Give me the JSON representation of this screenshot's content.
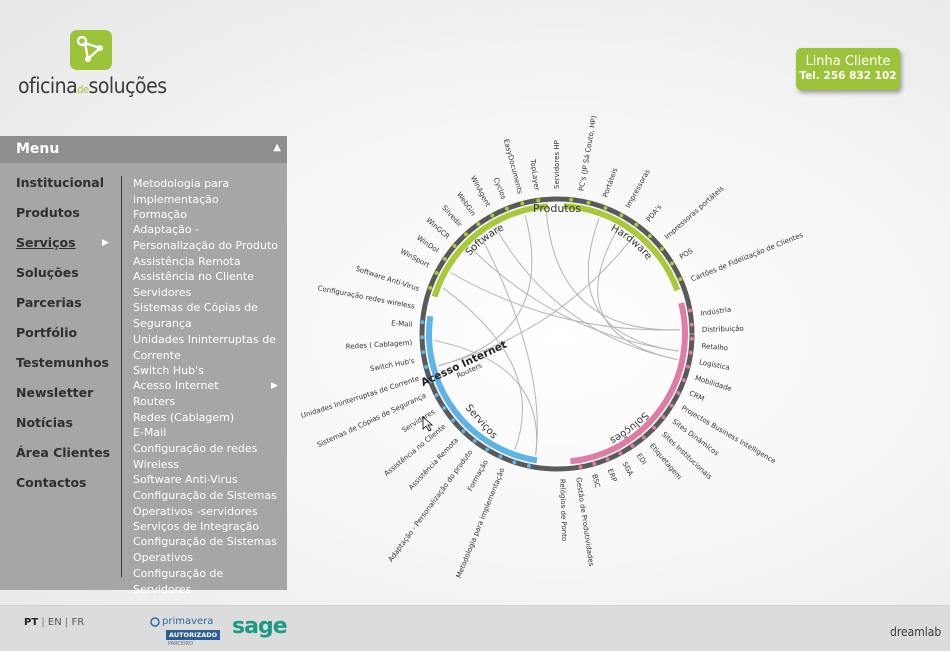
{
  "logo": {
    "text_a": "oficina",
    "text_b": "de",
    "text_c": "soluções"
  },
  "phone": {
    "title": "Linha Cliente",
    "number": "Tel. 256 832 102"
  },
  "menu": {
    "title": "Menu",
    "items": [
      "Institucional",
      "Produtos",
      "Serviços",
      "Soluções",
      "Parcerias",
      "Portfólio",
      "Testemunhos",
      "Newsletter",
      "Notícias",
      "Área Clientes",
      "Contactos"
    ],
    "active": "Serviços",
    "subitems": [
      "Metodologia para implementação",
      "Formação",
      "Adaptação - Personalização do Produto",
      "Assistência Remota",
      "Assistência no Cliente",
      "Servidores",
      "Sistemas de Cópias de Segurança",
      "Unidades Ininterruptas de Corrente",
      "Switch Hub's",
      "Acesso Internet",
      "Routers",
      "Redes (Cablagem)",
      "E-Mail",
      "Configuração de redes Wireless",
      "Software Anti-Virus",
      "Configuração de Sistemas Operativos -servidores",
      "Serviços de Integração",
      "Configuração de Sistemas Operativos",
      "Configuração de Servidores"
    ]
  },
  "diagram": {
    "center_label": "Produtos",
    "arc_labels": {
      "software": "Software",
      "hardware": "Hardware",
      "servicos": "Serviços",
      "solucoes": "Soluções"
    },
    "colors": {
      "software": "#a9c93a",
      "hardware": "#a9c93a",
      "servicos": "#5db4e6",
      "solucoes": "#e07aa6",
      "ring": "#5a5a5a"
    },
    "software_items": [
      "WinSport",
      "WinDol",
      "WinGCR",
      "Silvedir",
      "WebGin",
      "WinAgent",
      "Cyclos",
      "EasyDocuments",
      "TopLayer"
    ],
    "hardware_items": [
      "Servidores HP",
      "PC's (JP Sá Couto, HP)",
      "Portáteis",
      "Impressoras",
      "PDA's",
      "Impressoras portáteis",
      "POS",
      "Cartões de Fidelização de Clientes"
    ],
    "servicos_items_left": [
      "Metodologia para implementação",
      "Formação",
      "Adaptação - Personalização do produto",
      "Assistência Remota",
      "Assistência no Cliente",
      "Servidores",
      "Sistemas de Cópias de Segurança",
      "Unidades Ininterruptas de Corrente",
      "Switch Hub's",
      "Redes ( Cablagem)",
      "E-Mail",
      "Configuração redes wireless",
      "Software Anti-Virus"
    ],
    "servicos_highlight": "Acesso Internet",
    "servicos_highlight2": "Routers",
    "solucoes_items_right": [
      "Indústria",
      "Distribuição",
      "Retalho",
      "Logística",
      "Mobilidade",
      "CRM",
      "Projectos Business Intelligence",
      "Sites Dinâmicos",
      "Sites Institucionais",
      "Etiquetagem",
      "EDI",
      "SGA",
      "ERP",
      "BSC",
      "Gestão de Produtividades",
      "Relógios de Ponto"
    ]
  },
  "footer": {
    "languages": [
      "PT",
      "EN",
      "FR"
    ],
    "active_language": "PT",
    "primavera": "primavera",
    "primavera_badge": "AUTORIZADO",
    "primavera_sub": "PARCEIRO",
    "sage": "sage",
    "dreamlab": "dreamlab"
  }
}
